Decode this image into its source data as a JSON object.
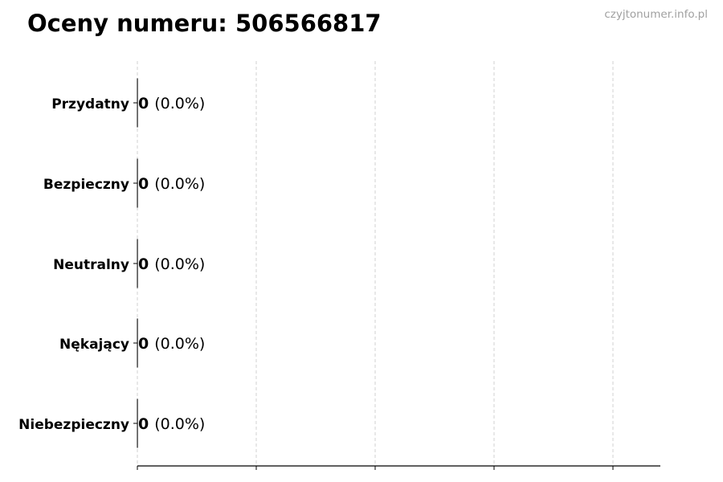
{
  "chart_data": {
    "type": "bar",
    "orientation": "horizontal",
    "title": "Oceny numeru: 506566817",
    "watermark": "czyjtonumer.info.pl",
    "categories": [
      "Przydatny",
      "Bezpieczny",
      "Neutralny",
      "Nękający",
      "Niebezpieczny"
    ],
    "values": [
      0,
      0,
      0,
      0,
      0
    ],
    "percent_labels": [
      "(0.0%)",
      "(0.0%)",
      "(0.0%)",
      "(0.0%)",
      "(0.0%)"
    ],
    "xlabel": "",
    "ylabel": "",
    "grid": "x dashed",
    "x_tick_labels_shown": false,
    "bar_edge_color": "#000000"
  }
}
